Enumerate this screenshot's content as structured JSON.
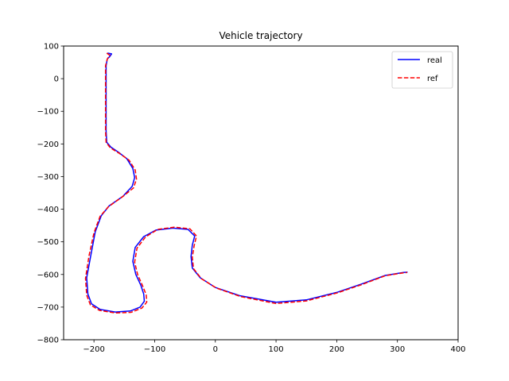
{
  "chart_data": {
    "type": "line",
    "title": "Vehicle trajectory",
    "xlabel": "",
    "ylabel": "",
    "xlim": [
      -250,
      400
    ],
    "ylim": [
      -800,
      100
    ],
    "xticks": [
      -200,
      -100,
      0,
      100,
      200,
      300,
      400
    ],
    "yticks": [
      100,
      0,
      -100,
      -200,
      -300,
      -400,
      -500,
      -600,
      -700,
      -800
    ],
    "grid": false,
    "legend_position": "top-right",
    "series": [
      {
        "name": "real",
        "color": "#0000ff",
        "style": "solid",
        "points": [
          [
            -177,
            78
          ],
          [
            -171,
            76
          ],
          [
            -174,
            68
          ],
          [
            -178,
            60
          ],
          [
            -180,
            40
          ],
          [
            -180,
            0
          ],
          [
            -180,
            -60
          ],
          [
            -180,
            -120
          ],
          [
            -180,
            -160
          ],
          [
            -179,
            -195
          ],
          [
            -172,
            -210
          ],
          [
            -160,
            -225
          ],
          [
            -146,
            -245
          ],
          [
            -136,
            -275
          ],
          [
            -133,
            -303
          ],
          [
            -137,
            -330
          ],
          [
            -152,
            -360
          ],
          [
            -175,
            -390
          ],
          [
            -188,
            -420
          ],
          [
            -198,
            -470
          ],
          [
            -205,
            -540
          ],
          [
            -212,
            -610
          ],
          [
            -210,
            -660
          ],
          [
            -204,
            -690
          ],
          [
            -190,
            -707
          ],
          [
            -165,
            -715
          ],
          [
            -140,
            -712
          ],
          [
            -124,
            -700
          ],
          [
            -117,
            -682
          ],
          [
            -118,
            -660
          ],
          [
            -123,
            -632
          ],
          [
            -131,
            -600
          ],
          [
            -136,
            -560
          ],
          [
            -132,
            -517
          ],
          [
            -118,
            -484
          ],
          [
            -98,
            -464
          ],
          [
            -70,
            -458
          ],
          [
            -45,
            -462
          ],
          [
            -34,
            -482
          ],
          [
            -38,
            -510
          ],
          [
            -40,
            -545
          ],
          [
            -38,
            -580
          ],
          [
            -25,
            -610
          ],
          [
            0,
            -640
          ],
          [
            40,
            -665
          ],
          [
            100,
            -685
          ],
          [
            150,
            -678
          ],
          [
            200,
            -655
          ],
          [
            240,
            -630
          ],
          [
            280,
            -603
          ],
          [
            310,
            -594
          ],
          [
            316,
            -593
          ]
        ]
      },
      {
        "name": "ref",
        "color": "#ff0000",
        "style": "dashed",
        "points": [
          [
            -179,
            78
          ],
          [
            -174,
            72
          ],
          [
            -178,
            60
          ],
          [
            -181,
            40
          ],
          [
            -181,
            0
          ],
          [
            -181,
            -60
          ],
          [
            -181,
            -120
          ],
          [
            -181,
            -160
          ],
          [
            -180,
            -195
          ],
          [
            -173,
            -212
          ],
          [
            -159,
            -228
          ],
          [
            -142,
            -250
          ],
          [
            -132,
            -280
          ],
          [
            -130,
            -308
          ],
          [
            -135,
            -335
          ],
          [
            -153,
            -362
          ],
          [
            -176,
            -392
          ],
          [
            -190,
            -422
          ],
          [
            -200,
            -472
          ],
          [
            -208,
            -542
          ],
          [
            -214,
            -612
          ],
          [
            -212,
            -663
          ],
          [
            -206,
            -693
          ],
          [
            -191,
            -710
          ],
          [
            -165,
            -718
          ],
          [
            -139,
            -716
          ],
          [
            -121,
            -703
          ],
          [
            -113,
            -685
          ],
          [
            -114,
            -662
          ],
          [
            -120,
            -634
          ],
          [
            -128,
            -601
          ],
          [
            -133,
            -562
          ],
          [
            -129,
            -519
          ],
          [
            -115,
            -485
          ],
          [
            -95,
            -462
          ],
          [
            -68,
            -455
          ],
          [
            -42,
            -460
          ],
          [
            -31,
            -482
          ],
          [
            -35,
            -512
          ],
          [
            -38,
            -547
          ],
          [
            -36,
            -582
          ],
          [
            -23,
            -613
          ],
          [
            2,
            -642
          ],
          [
            42,
            -668
          ],
          [
            100,
            -689
          ],
          [
            150,
            -681
          ],
          [
            200,
            -657
          ],
          [
            240,
            -632
          ],
          [
            280,
            -604
          ],
          [
            310,
            -595
          ],
          [
            316,
            -594
          ]
        ]
      }
    ]
  }
}
